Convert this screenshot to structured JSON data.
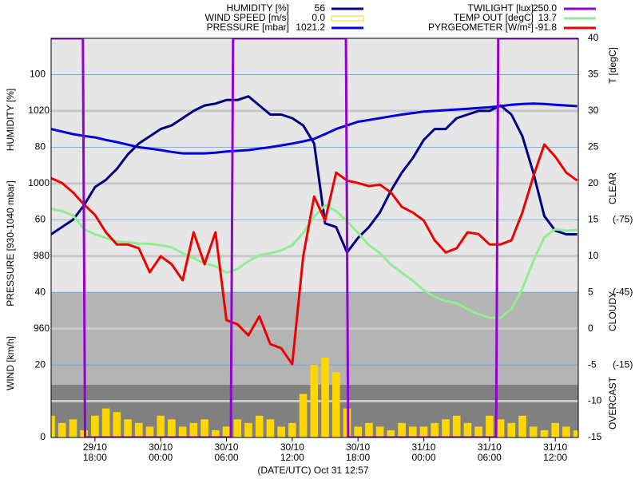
{
  "chart_data": {
    "type": "line",
    "title": "(DATE/UTC) Oct 31 12:57",
    "xlim": [
      14,
      62.1
    ],
    "xticks": [
      {
        "value": 18,
        "label": "29/10 18:00"
      },
      {
        "value": 24,
        "label": "30/10 00:00"
      },
      {
        "value": 30,
        "label": "30/10 06:00"
      },
      {
        "value": 36,
        "label": "30/10 12:00"
      },
      {
        "value": 42,
        "label": "30/10 18:00"
      },
      {
        "value": 48,
        "label": "31/10 00:00"
      },
      {
        "value": 54,
        "label": "31/10 06:00"
      },
      {
        "value": 60,
        "label": "31/10 12:00"
      }
    ],
    "x": [
      14,
      15,
      16,
      17,
      18,
      19,
      20,
      21,
      22,
      23,
      24,
      25,
      26,
      27,
      28,
      29,
      30,
      31,
      32,
      33,
      34,
      35,
      36,
      37,
      38,
      39,
      40,
      41,
      42,
      43,
      44,
      45,
      46,
      47,
      48,
      49,
      50,
      51,
      52,
      53,
      54,
      55,
      56,
      57,
      58,
      59,
      60,
      61,
      62
    ],
    "axes": {
      "humidity": {
        "label": "HUMIDITY [%]",
        "lim": [
          0,
          110
        ],
        "ticks": [
          60,
          80,
          100
        ]
      },
      "pressure": {
        "label": "PRESSURE [930-1040 mbar]",
        "lim": [
          930,
          1040
        ],
        "ticks": [
          960,
          980,
          1000,
          1020
        ]
      },
      "wind": {
        "label": "WIND [km/h]",
        "lim": [
          0,
          110
        ],
        "ticks": [
          0,
          20,
          40
        ]
      },
      "temp": {
        "label": "T [degC]",
        "lim": [
          -15,
          40
        ],
        "ticks": [
          40,
          35,
          30,
          25,
          20,
          15,
          10,
          5,
          0,
          -5,
          -10,
          -15
        ]
      },
      "pyr": {
        "lim": [
          15,
          -150
        ],
        "ticks": [
          {
            "value": -75,
            "label": "(-75)"
          },
          {
            "value": -45,
            "label": "(-45)"
          },
          {
            "value": -15,
            "label": "(-15)"
          }
        ]
      },
      "twilight": {
        "lim": [
          0,
          250
        ]
      }
    },
    "sky_labels": [
      "CLEAR",
      "CLOUDY",
      "OVERCAST"
    ],
    "series": [
      {
        "name": "WIND SPEED [m/s]",
        "current": "0.0",
        "color": "#ffd700",
        "axis": "wind",
        "kind": "bar",
        "values": [
          6,
          4,
          5,
          2,
          6,
          8,
          7,
          5,
          4,
          3,
          6,
          5,
          3,
          4,
          5,
          2,
          3,
          5,
          4,
          6,
          5,
          3,
          4,
          12,
          20,
          22,
          18,
          8,
          3,
          4,
          3,
          2,
          4,
          3,
          3,
          4,
          5,
          6,
          4,
          3,
          6,
          5,
          4,
          6,
          3,
          2,
          4,
          3,
          2
        ]
      },
      {
        "name": "HUMIDITY [%]",
        "current": "56",
        "color": "#000080",
        "axis": "humidity",
        "values": [
          56,
          58,
          60,
          64,
          69,
          71,
          74,
          78,
          81,
          83,
          85,
          86,
          88,
          90,
          91.5,
          92,
          93,
          93,
          94,
          91.5,
          89,
          89,
          88,
          86,
          81,
          59,
          58,
          51,
          55,
          58,
          62,
          68,
          73,
          77,
          82,
          85,
          85,
          88,
          89,
          90,
          90,
          91.5,
          89,
          83,
          73,
          61,
          57,
          56,
          56
        ]
      },
      {
        "name": "PRESSURE [mbar]",
        "current": "1021.2",
        "color": "#0000e0",
        "axis": "pressure",
        "values": [
          1015,
          1014.3,
          1013.6,
          1013.1,
          1012.7,
          1012,
          1011.4,
          1010.7,
          1010,
          1009.6,
          1009.2,
          1008.7,
          1008.3,
          1008.3,
          1008.3,
          1008.5,
          1008.8,
          1009,
          1009.2,
          1009.6,
          1010,
          1010.5,
          1011,
          1011.6,
          1012.3,
          1013.6,
          1015,
          1016,
          1017,
          1017.5,
          1018,
          1018.5,
          1019,
          1019.4,
          1019.8,
          1020,
          1020.2,
          1020.4,
          1020.6,
          1020.8,
          1021,
          1021.3,
          1021.7,
          1021.9,
          1022,
          1021.9,
          1021.7,
          1021.5,
          1021.3
        ]
      },
      {
        "name": "TEMP OUT [degC]",
        "current": "13.7",
        "color": "#90ee90",
        "axis": "temp",
        "values": [
          16.5,
          16.2,
          15.6,
          13.7,
          13,
          12.5,
          12,
          11.9,
          11.7,
          11.7,
          11.5,
          11.2,
          10.4,
          9.7,
          9,
          8.6,
          7.7,
          8.2,
          9.3,
          10.1,
          10.4,
          10.8,
          11.5,
          13.2,
          15.4,
          17,
          16.2,
          14.8,
          13.2,
          11.5,
          10.4,
          8.8,
          7.7,
          6.6,
          5.3,
          4.4,
          3.8,
          3.5,
          2.7,
          2,
          1.5,
          1.5,
          2.7,
          5.5,
          9.3,
          12.6,
          13.7,
          13.5,
          13.6
        ]
      },
      {
        "name": "PYRGEOMETER [W/m²]",
        "current": "-91.8",
        "color": "#ee0000",
        "axis": "pyr",
        "values": [
          -92.2,
          -90.2,
          -86.3,
          -81.3,
          -77,
          -69.8,
          -64.8,
          -64.8,
          -63.2,
          -53.3,
          -59.9,
          -56.6,
          -50,
          -69.8,
          -56.6,
          -69.8,
          -33.5,
          -31.8,
          -27.2,
          -35.1,
          -23.6,
          -21.9,
          -15.3,
          -59.9,
          -84.6,
          -74.7,
          -94.5,
          -91.2,
          -90.2,
          -88.9,
          -89.5,
          -86.3,
          -80.3,
          -78,
          -74.7,
          -66.5,
          -61.5,
          -63.2,
          -69.8,
          -69.1,
          -64.8,
          -64.8,
          -66.5,
          -78,
          -92.9,
          -106.1,
          -101.1,
          -94.5,
          -91.2
        ]
      },
      {
        "name": "TWILIGHT [lux]",
        "current": "250.0",
        "color": "#9400d3",
        "axis": "twilight",
        "x": [
          14,
          16.9,
          17.1,
          30.4,
          30.6,
          40.9,
          41.1,
          54.6,
          54.8,
          62.1
        ],
        "values": [
          250,
          250,
          0,
          0,
          250,
          250,
          0,
          0,
          250,
          250
        ]
      }
    ]
  }
}
